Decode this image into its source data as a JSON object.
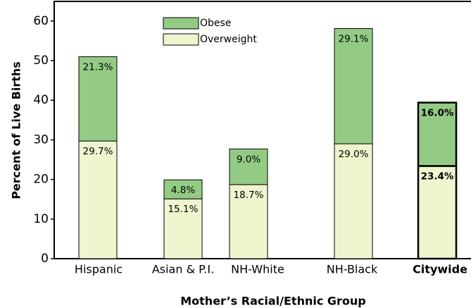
{
  "chart_data": {
    "type": "stacked-bar",
    "y_label": "Percent of Live Births",
    "x_label": "Mother’s Racial/Ethnic Group",
    "categories": [
      "Hispanic",
      "Asian & P.I.",
      "NH-White",
      "NH-Black",
      "Citywide"
    ],
    "series": [
      {
        "name": "Overweight",
        "color": "#eef5cf",
        "values": [
          29.7,
          15.1,
          18.7,
          29.0,
          23.4
        ],
        "value_labels": [
          "29.7%",
          "15.1%",
          "18.7%",
          "29.0%",
          "23.4%"
        ]
      },
      {
        "name": "Obese",
        "color": "#93cb85",
        "values": [
          21.3,
          4.8,
          9.0,
          29.1,
          16.0
        ],
        "value_labels": [
          "21.3%",
          "4.8%",
          "9.0%",
          "29.1%",
          "16.0%"
        ]
      }
    ],
    "ylim": [
      0,
      65
    ],
    "yticks": [
      0,
      10,
      20,
      30,
      40,
      50,
      60
    ],
    "grid": false
  }
}
